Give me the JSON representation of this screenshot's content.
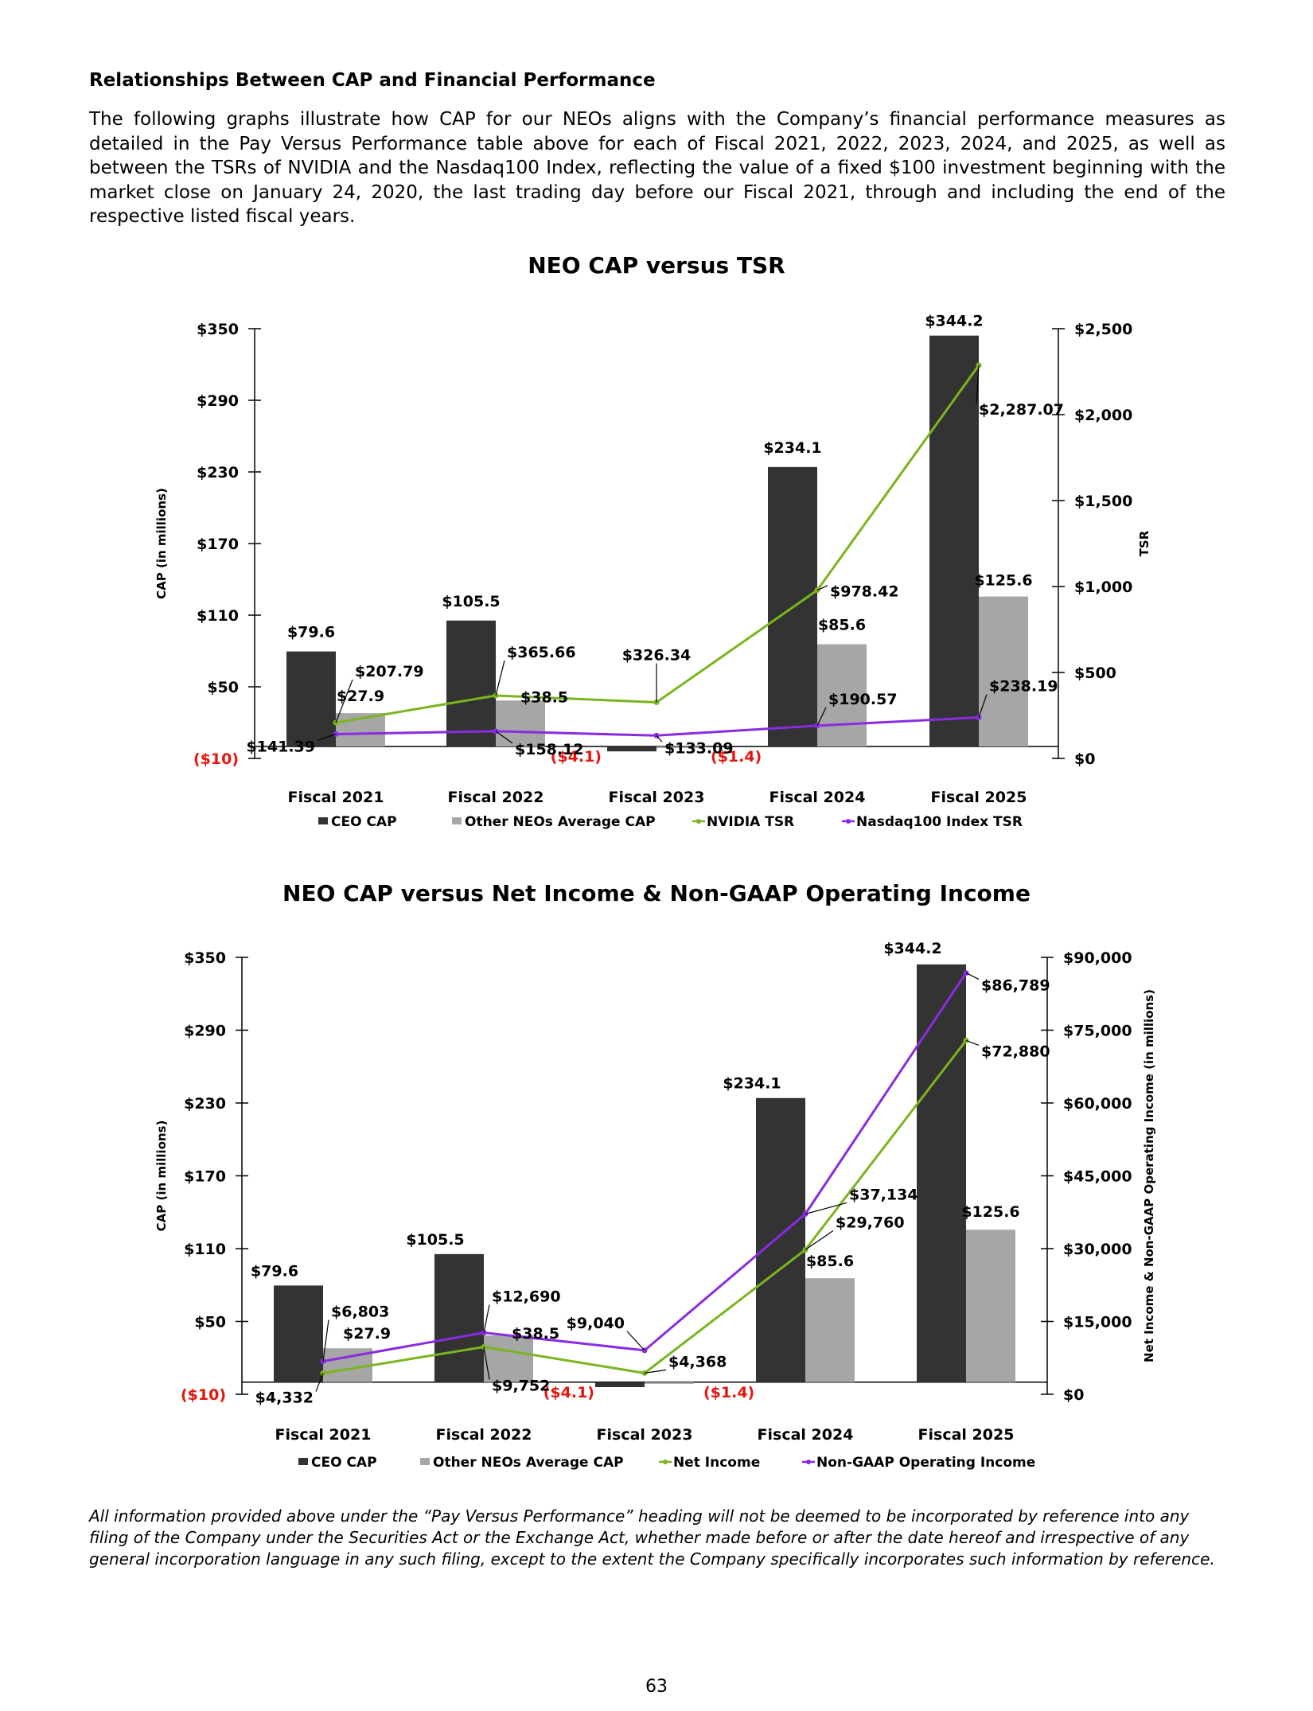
{
  "heading": "Relationships Between CAP and Financial Performance",
  "intro": "The following graphs illustrate how CAP for our NEOs aligns with the Company’s financial performance measures as detailed in the Pay Versus Performance table above for each of Fiscal 2021, 2022, 2023, 2024, and 2025, as well as between the TSRs of NVIDIA and the Nasdaq100 Index, reflecting the value of a fixed $100 investment beginning with the market close on January 24, 2020, the last trading day before our Fiscal 2021, through and including the end of the respective listed fiscal years.",
  "footnote": "All information provided above under the “Pay Versus Performance” heading will not be deemed to be incorporated by reference into any filing of the Company under the Securities Act or the Exchange Act, whether made before or after the date hereof and irrespective of any general incorporation language in any such filing, except to the extent the Company specifically incorporates such information by reference.",
  "page_number": "63",
  "colors": {
    "ceo": "#333333",
    "other": "#a6a6a6",
    "green": "#7ab51d",
    "purple": "#8a2be2",
    "negative": "#e8140c"
  },
  "chart_data": [
    {
      "type": "bar",
      "title": "NEO CAP versus TSR",
      "ylabel": "CAP (in millions)",
      "y2label": "TSR",
      "categories": [
        "Fiscal 2021",
        "Fiscal 2022",
        "Fiscal 2023",
        "Fiscal 2024",
        "Fiscal 2025"
      ],
      "ylim": [
        -10,
        350
      ],
      "yticks": [
        -10,
        50,
        110,
        170,
        230,
        290,
        350
      ],
      "yticklabels": [
        "($10)",
        "$50",
        "$110",
        "$170",
        "$230",
        "$290",
        "$350"
      ],
      "y2lim": [
        0,
        2500
      ],
      "y2ticks": [
        0,
        500,
        1000,
        1500,
        2000,
        2500
      ],
      "y2ticklabels": [
        "$0",
        "$500",
        "$1,000",
        "$1,500",
        "$2,000",
        "$2,500"
      ],
      "series": [
        {
          "name": "CEO CAP",
          "type": "bar",
          "axis": "left",
          "values": [
            79.6,
            105.5,
            -4.1,
            234.1,
            344.2
          ],
          "labels": [
            "$79.6",
            "$105.5",
            "($4.1)",
            "$234.1",
            "$344.2"
          ]
        },
        {
          "name": "Other NEOs Average CAP",
          "type": "bar",
          "axis": "left",
          "values": [
            27.9,
            38.5,
            -1.4,
            85.6,
            125.6
          ],
          "labels": [
            "$27.9",
            "$38.5",
            "($1.4)",
            "$85.6",
            "$125.6"
          ]
        },
        {
          "name": "NVIDIA TSR",
          "type": "line",
          "axis": "right",
          "values": [
            207.79,
            365.66,
            326.34,
            978.42,
            2287.07
          ],
          "labels": [
            "$207.79",
            "$365.66",
            "$326.34",
            "$978.42",
            "$2,287.07"
          ]
        },
        {
          "name": "Nasdaq100 Index TSR",
          "type": "line",
          "axis": "right",
          "values": [
            141.39,
            158.12,
            133.09,
            190.57,
            238.19
          ],
          "labels": [
            "$141.39",
            "$158.12",
            "$133.09",
            "$190.57",
            "$238.19"
          ]
        }
      ],
      "legend": "bottom",
      "grid": false
    },
    {
      "type": "bar",
      "title": "NEO CAP versus Net Income & Non-GAAP Operating Income",
      "ylabel": "CAP (in millions)",
      "y2label": "Net Income & Non-GAAP Operating Income (in millions)",
      "categories": [
        "Fiscal 2021",
        "Fiscal 2022",
        "Fiscal 2023",
        "Fiscal 2024",
        "Fiscal 2025"
      ],
      "ylim": [
        -10,
        350
      ],
      "yticks": [
        -10,
        50,
        110,
        170,
        230,
        290,
        350
      ],
      "yticklabels": [
        "($10)",
        "$50",
        "$110",
        "$170",
        "$230",
        "$290",
        "$350"
      ],
      "y2lim": [
        0,
        90000
      ],
      "y2ticks": [
        0,
        15000,
        30000,
        45000,
        60000,
        75000,
        90000
      ],
      "y2ticklabels": [
        "$0",
        "$15,000",
        "$30,000",
        "$45,000",
        "$60,000",
        "$75,000",
        "$90,000"
      ],
      "series": [
        {
          "name": "CEO CAP",
          "type": "bar",
          "axis": "left",
          "values": [
            79.6,
            105.5,
            -4.1,
            234.1,
            344.2
          ],
          "labels": [
            "$79.6",
            "$105.5",
            "($4.1)",
            "$234.1",
            "$344.2"
          ]
        },
        {
          "name": "Other NEOs Average CAP",
          "type": "bar",
          "axis": "left",
          "values": [
            27.9,
            38.5,
            -1.4,
            85.6,
            125.6
          ],
          "labels": [
            "$27.9",
            "$38.5",
            "($1.4)",
            "$85.6",
            "$125.6"
          ]
        },
        {
          "name": "Net Income",
          "type": "line",
          "axis": "right",
          "values": [
            4332,
            9752,
            4368,
            29760,
            72880
          ],
          "labels": [
            "$4,332",
            "$9,752",
            "$4,368",
            "$29,760",
            "$72,880"
          ]
        },
        {
          "name": "Non-GAAP Operating Income",
          "type": "line",
          "axis": "right",
          "values": [
            6803,
            12690,
            9040,
            37134,
            86789
          ],
          "labels": [
            "$6,803",
            "$12,690",
            "$9,040",
            "$37,134",
            "$86,789"
          ]
        }
      ],
      "legend": "bottom",
      "grid": false
    }
  ]
}
